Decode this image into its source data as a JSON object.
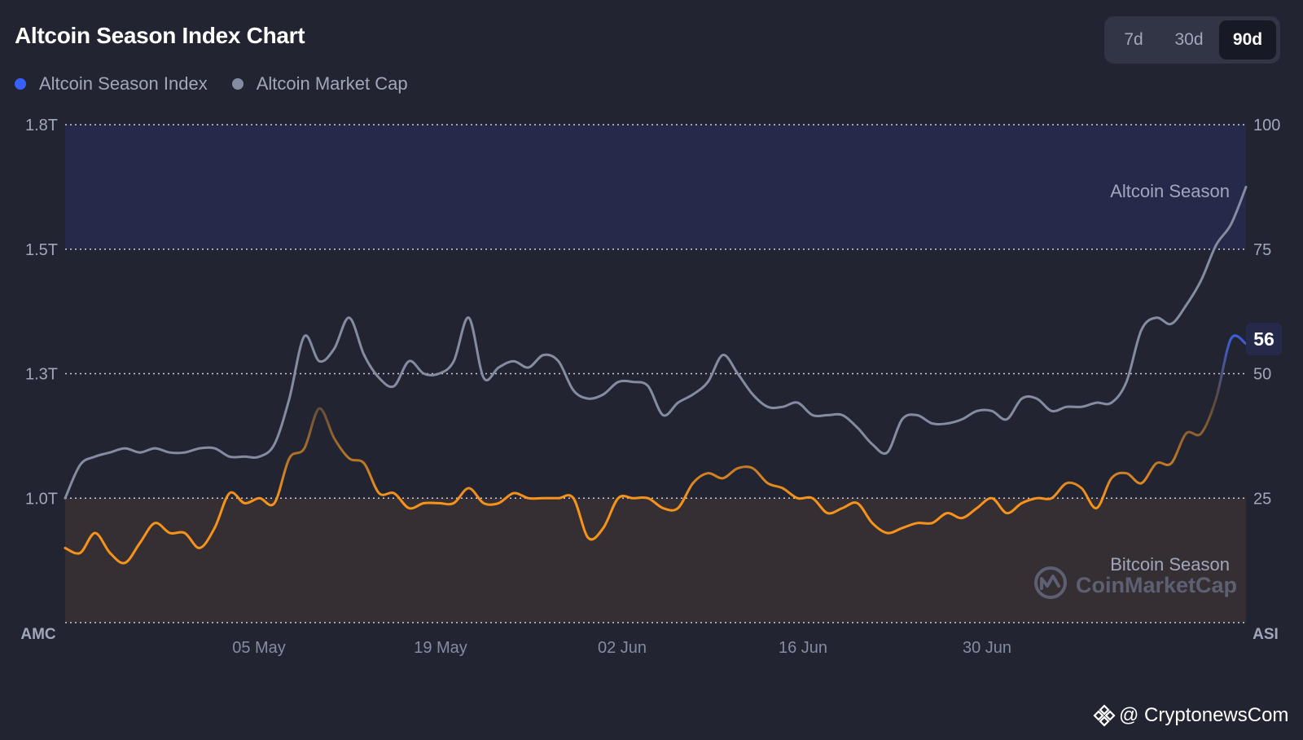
{
  "header": {
    "title": "Altcoin Season Index Chart",
    "ranges": [
      "7d",
      "30d",
      "90d"
    ],
    "active_range": "90d"
  },
  "legend": {
    "items": [
      {
        "label": "Altcoin Season Index",
        "color": "#3861fb"
      },
      {
        "label": "Altcoin Market Cap",
        "color": "#858ca2"
      }
    ]
  },
  "colors": {
    "background": "#222531",
    "altcoin_zone": "#252a4a",
    "bitcoin_zone": "#352f33",
    "index_line": "#f7931a",
    "index_line_high": "#3861fb",
    "market_cap_line": "#858ca2",
    "badge": "#252a4a"
  },
  "chart_data": {
    "type": "line",
    "x_tick_labels": [
      "05 May",
      "19 May",
      "02 Jun",
      "16 Jun",
      "30 Jun"
    ],
    "left_axis": {
      "title": "AMC",
      "tick_labels": [
        "1.0T",
        "1.3T",
        "1.5T",
        "1.8T"
      ],
      "ylim": [
        0.75,
        1.8
      ]
    },
    "right_axis": {
      "title": "ASI",
      "tick_labels": [
        "25",
        "50",
        "75",
        "100"
      ],
      "ylim": [
        0,
        100
      ]
    },
    "zones": [
      {
        "label": "Altcoin Season",
        "from": 75,
        "to": 100
      },
      {
        "label": "Bitcoin Season",
        "from": 0,
        "to": 25
      }
    ],
    "current_value_badge": "56",
    "series": [
      {
        "name": "Altcoin Season Index",
        "axis": "right",
        "values": [
          15,
          14,
          18,
          14,
          12,
          16,
          20,
          18,
          18,
          15,
          19,
          26,
          24,
          25,
          24,
          33,
          35,
          43,
          37,
          33,
          32,
          26,
          26,
          23,
          24,
          24,
          24,
          27,
          24,
          24,
          26,
          25,
          25,
          25,
          25,
          17,
          19,
          25,
          25,
          25,
          23,
          23,
          28,
          30,
          29,
          31,
          31,
          28,
          27,
          25,
          25,
          22,
          23,
          24,
          20,
          18,
          19,
          20,
          20,
          22,
          21,
          23,
          25,
          22,
          24,
          25,
          25,
          28,
          27,
          23,
          29,
          30,
          28,
          32,
          32,
          38,
          38,
          45,
          57,
          56
        ]
      },
      {
        "name": "Altcoin Market Cap",
        "axis": "left",
        "values": [
          1.0,
          1.08,
          1.1,
          1.11,
          1.12,
          1.11,
          1.12,
          1.11,
          1.11,
          1.12,
          1.12,
          1.1,
          1.1,
          1.1,
          1.13,
          1.24,
          1.36,
          1.32,
          1.34,
          1.39,
          1.33,
          1.29,
          1.27,
          1.32,
          1.3,
          1.3,
          1.32,
          1.39,
          1.29,
          1.31,
          1.32,
          1.31,
          1.33,
          1.32,
          1.26,
          1.24,
          1.25,
          1.28,
          1.28,
          1.27,
          1.2,
          1.23,
          1.25,
          1.28,
          1.33,
          1.3,
          1.25,
          1.22,
          1.22,
          1.23,
          1.2,
          1.2,
          1.2,
          1.17,
          1.13,
          1.11,
          1.19,
          1.2,
          1.18,
          1.18,
          1.19,
          1.21,
          1.21,
          1.19,
          1.24,
          1.24,
          1.21,
          1.22,
          1.22,
          1.23,
          1.23,
          1.28,
          1.37,
          1.39,
          1.38,
          1.41,
          1.45,
          1.51,
          1.56,
          1.65
        ]
      }
    ]
  },
  "footer": {
    "watermark": "CoinMarketCap",
    "brand": "@ CryptonewsCom"
  }
}
